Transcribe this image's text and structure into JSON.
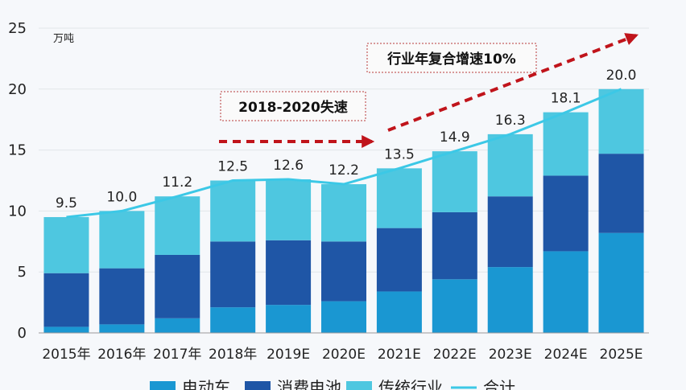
{
  "chart_data": {
    "type": "bar",
    "stacked": true,
    "unit": "万吨",
    "categories": [
      "2015年",
      "2016年",
      "2017年",
      "2018年",
      "2019E",
      "2020E",
      "2021E",
      "2022E",
      "2023E",
      "2024E",
      "2025E"
    ],
    "series": [
      {
        "name": "电动车",
        "color": "#1a97d2",
        "values": [
          0.5,
          0.7,
          1.2,
          2.1,
          2.3,
          2.6,
          3.4,
          4.4,
          5.4,
          6.7,
          8.2
        ]
      },
      {
        "name": "消费电池",
        "color": "#1f56a6",
        "values": [
          4.4,
          4.6,
          5.2,
          5.4,
          5.3,
          4.9,
          5.2,
          5.5,
          5.8,
          6.2,
          6.5
        ]
      },
      {
        "name": "传统行业",
        "color": "#4ec7e0",
        "values": [
          4.6,
          4.7,
          4.8,
          5.0,
          5.0,
          4.7,
          4.9,
          5.0,
          5.1,
          5.2,
          5.3
        ]
      }
    ],
    "total": {
      "name": "合计",
      "color": "#3cc8e6",
      "values": [
        9.5,
        10.0,
        11.2,
        12.5,
        12.6,
        12.2,
        13.5,
        14.9,
        16.3,
        18.1,
        20.0
      ],
      "labels": [
        "9.5",
        "10.0",
        "11.2",
        "12.5",
        "12.6",
        "12.2",
        "13.5",
        "14.9",
        "16.3",
        "18.1",
        "20.0"
      ]
    },
    "ylim": [
      0,
      25
    ],
    "yticks": [
      0,
      5,
      10,
      15,
      20,
      25
    ],
    "grid": true,
    "legend_position": "bottom",
    "annotations": [
      {
        "text": "2018-2020失速"
      },
      {
        "text": "行业年复合增速10%"
      }
    ],
    "arrow_color": "#c0141b"
  }
}
